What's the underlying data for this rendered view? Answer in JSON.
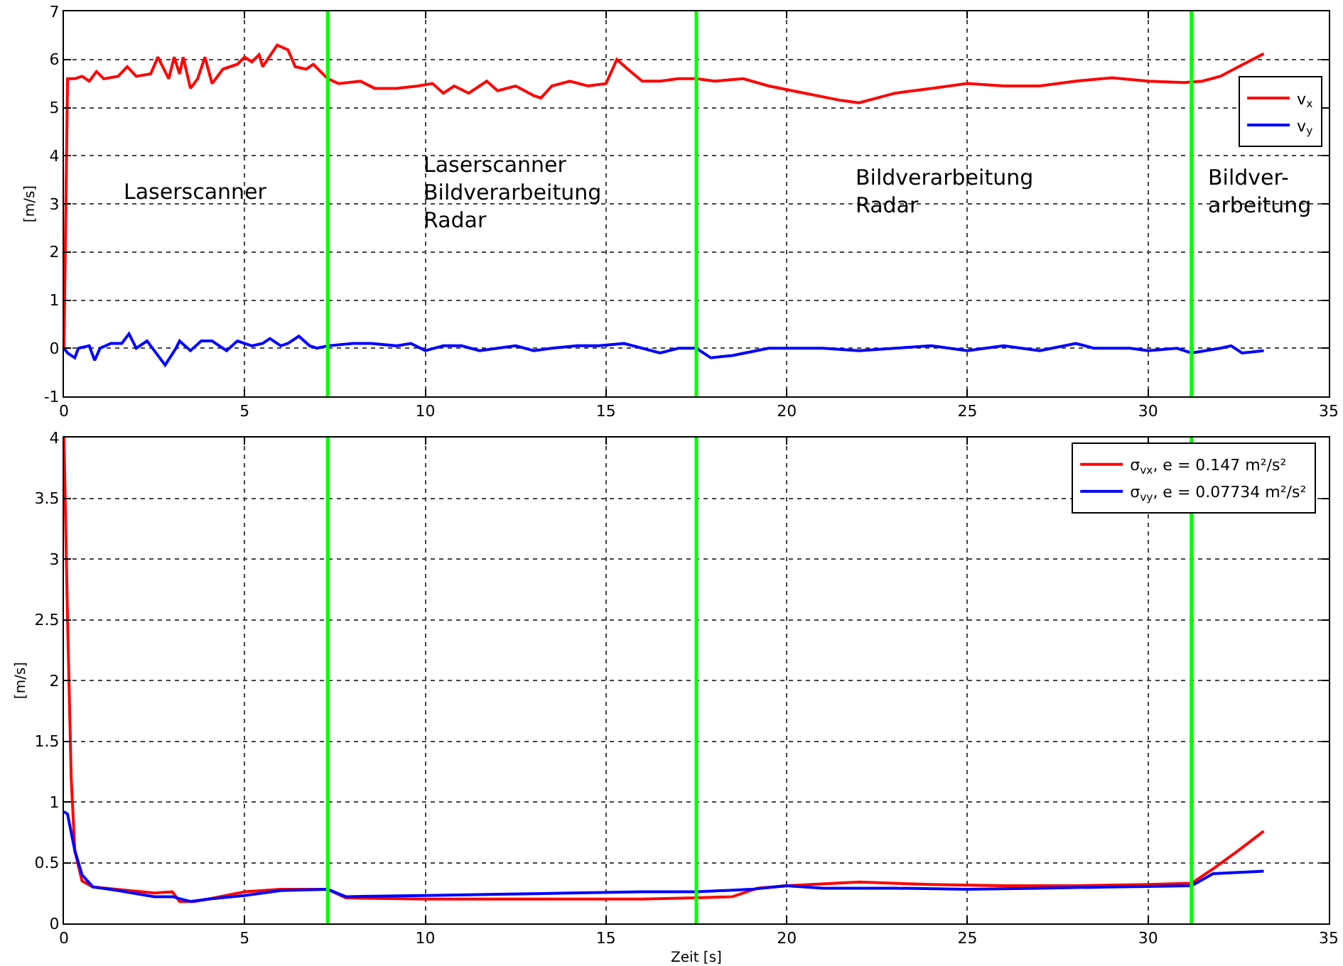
{
  "chart_data": [
    {
      "type": "line",
      "ylabel": "[m/s]",
      "xlim": [
        0,
        35
      ],
      "ylim": [
        -1,
        7
      ],
      "xticks": [
        0,
        5,
        10,
        15,
        20,
        25,
        30,
        35
      ],
      "yticks": [
        -1,
        0,
        1,
        2,
        3,
        4,
        5,
        6,
        7
      ],
      "grid": true,
      "legend": "right",
      "line_style": "solid",
      "marker": "none",
      "ref_lines": [
        {
          "axis": "x",
          "value": 7.3,
          "color": "#00ff00"
        },
        {
          "axis": "x",
          "value": 17.5,
          "color": "#00ff00"
        },
        {
          "axis": "x",
          "value": 31.2,
          "color": "#00ff00"
        }
      ],
      "annotations": [
        "Laserscanner",
        "Laserscanner\nBildverarbeitung\nRadar",
        "Bildverarbeitung\nRadar",
        "Bildver-\narbeitung"
      ],
      "series": [
        {
          "name": "v$_{x}$",
          "color": "#ff0000",
          "x": [
            0,
            0.1,
            0.3,
            0.5,
            0.7,
            0.9,
            1.1,
            1.5,
            1.75,
            2,
            2.4,
            2.6,
            2.9,
            3.05,
            3.2,
            3.3,
            3.5,
            3.7,
            3.9,
            4.1,
            4.4,
            4.8,
            5,
            5.2,
            5.4,
            5.5,
            5.9,
            6.2,
            6.4,
            6.7,
            6.9,
            7.3,
            7.6,
            8.2,
            8.6,
            9.2,
            9.8,
            10.2,
            10.5,
            10.8,
            11.2,
            11.7,
            12,
            12.5,
            13,
            13.2,
            13.5,
            14,
            14.5,
            15,
            15.3,
            15.6,
            16,
            16.5,
            17,
            17.5,
            18,
            18.8,
            19.5,
            20.5,
            21.5,
            22,
            23,
            24,
            25,
            26,
            27,
            28,
            29,
            30,
            31,
            31.5,
            32,
            32.5,
            33.2
          ],
          "values": [
            0,
            5.6,
            5.6,
            5.65,
            5.55,
            5.75,
            5.6,
            5.65,
            5.85,
            5.65,
            5.7,
            6.05,
            5.6,
            6.05,
            5.7,
            6.05,
            5.4,
            5.6,
            6.05,
            5.5,
            5.8,
            5.9,
            6.05,
            5.95,
            6.1,
            5.85,
            6.3,
            6.2,
            5.85,
            5.8,
            5.9,
            5.6,
            5.5,
            5.55,
            5.4,
            5.4,
            5.45,
            5.5,
            5.3,
            5.45,
            5.3,
            5.55,
            5.35,
            5.45,
            5.25,
            5.2,
            5.45,
            5.55,
            5.45,
            5.5,
            6,
            5.8,
            5.55,
            5.55,
            5.6,
            5.6,
            5.55,
            5.6,
            5.45,
            5.3,
            5.15,
            5.1,
            5.3,
            5.4,
            5.5,
            5.45,
            5.45,
            5.55,
            5.62,
            5.55,
            5.52,
            5.55,
            5.65,
            5.85,
            6.12
          ]
        },
        {
          "name": "v$_{y}$",
          "color": "#0000ff",
          "x": [
            0,
            0.1,
            0.3,
            0.4,
            0.7,
            0.85,
            1,
            1.3,
            1.6,
            1.8,
            2,
            2.3,
            2.5,
            2.8,
            3.1,
            3.2,
            3.5,
            3.8,
            4.1,
            4.3,
            4.5,
            4.8,
            5.2,
            5.5,
            5.7,
            6,
            6.2,
            6.5,
            6.8,
            7,
            7.3,
            8,
            8.5,
            9.2,
            9.6,
            10,
            10.5,
            11,
            11.5,
            12,
            12.5,
            13,
            13.5,
            14.2,
            14.8,
            15.5,
            16,
            16.5,
            17,
            17.5,
            17.9,
            18.5,
            19.5,
            20,
            21,
            22,
            23,
            24,
            25,
            26,
            27,
            28,
            28.5,
            29.5,
            30,
            30.8,
            31.2,
            32,
            32.3,
            32.6,
            33.2
          ],
          "values": [
            0,
            -0.1,
            -0.2,
            0,
            0.05,
            -0.25,
            0,
            0.1,
            0.1,
            0.3,
            0,
            0.15,
            -0.05,
            -0.35,
            0,
            0.15,
            -0.05,
            0.15,
            0.15,
            0.05,
            -0.05,
            0.15,
            0.05,
            0.1,
            0.2,
            0.05,
            0.1,
            0.25,
            0.05,
            0,
            0.05,
            0.1,
            0.1,
            0.05,
            0.1,
            -0.05,
            0.05,
            0.05,
            -0.05,
            0,
            0.05,
            -0.05,
            0,
            0.05,
            0.05,
            0.1,
            0,
            -0.1,
            0,
            0,
            -0.2,
            -0.15,
            0,
            0,
            0,
            -0.05,
            0,
            0.05,
            -0.05,
            0.05,
            -0.05,
            0.1,
            0,
            0,
            -0.05,
            0,
            -0.1,
            0,
            0.05,
            -0.1,
            -0.05
          ]
        }
      ]
    },
    {
      "type": "line",
      "xlabel": "Zeit [s]",
      "ylabel": "[m/s]",
      "xlim": [
        0,
        35
      ],
      "ylim": [
        0,
        4
      ],
      "xticks": [
        0,
        5,
        10,
        15,
        20,
        25,
        30,
        35
      ],
      "yticks": [
        0,
        0.5,
        1,
        1.5,
        2,
        2.5,
        3,
        3.5,
        4
      ],
      "grid": true,
      "legend": "top right",
      "line_style": "solid",
      "marker": "none",
      "ref_lines": [
        {
          "axis": "x",
          "value": 7.3,
          "color": "#00ff00"
        },
        {
          "axis": "x",
          "value": 17.5,
          "color": "#00ff00"
        },
        {
          "axis": "x",
          "value": 31.2,
          "color": "#00ff00"
        }
      ],
      "series": [
        {
          "name": "σ$_{vx}$, e = 0.147 m²/s²",
          "color": "#ff0000",
          "x": [
            0,
            0.1,
            0.2,
            0.3,
            0.5,
            0.8,
            1.5,
            2.5,
            3,
            3.2,
            3.6,
            4,
            5,
            6,
            7.3,
            7.8,
            10,
            12,
            14,
            16,
            17.5,
            18.5,
            19.2,
            20,
            22,
            24,
            26,
            28,
            30,
            31.2,
            31.8,
            32.5,
            33.2
          ],
          "values": [
            4,
            2.5,
            1.2,
            0.6,
            0.35,
            0.3,
            0.28,
            0.25,
            0.26,
            0.18,
            0.18,
            0.2,
            0.26,
            0.28,
            0.28,
            0.21,
            0.2,
            0.2,
            0.2,
            0.2,
            0.21,
            0.22,
            0.29,
            0.31,
            0.34,
            0.32,
            0.31,
            0.31,
            0.32,
            0.33,
            0.45,
            0.6,
            0.76
          ]
        },
        {
          "name": "σ$_{vy}$, e = 0.07734 m²/s²",
          "color": "#0000ff",
          "x": [
            0,
            0.1,
            0.3,
            0.5,
            0.8,
            1.5,
            2.5,
            3,
            3.5,
            4,
            5,
            6,
            7.3,
            7.8,
            10,
            12,
            14,
            16,
            17.5,
            19,
            20,
            21,
            23,
            25,
            27,
            29,
            31.2,
            31.8,
            33.2
          ],
          "values": [
            0.92,
            0.9,
            0.6,
            0.4,
            0.3,
            0.27,
            0.22,
            0.22,
            0.18,
            0.2,
            0.23,
            0.27,
            0.28,
            0.22,
            0.23,
            0.24,
            0.25,
            0.26,
            0.26,
            0.28,
            0.31,
            0.29,
            0.29,
            0.28,
            0.29,
            0.3,
            0.31,
            0.41,
            0.43
          ]
        }
      ]
    }
  ]
}
